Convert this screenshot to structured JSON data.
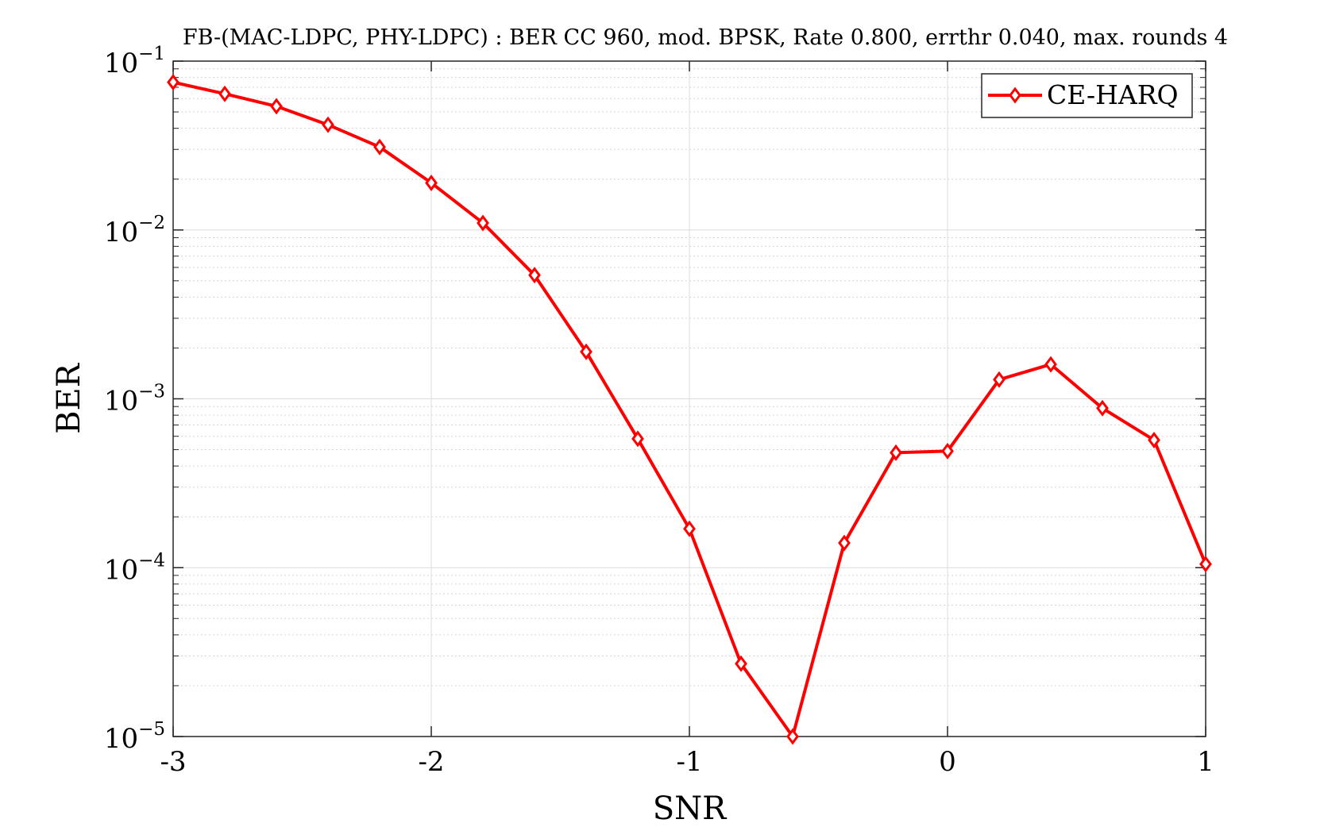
{
  "chart_data": {
    "type": "line",
    "title": "FB-(MAC-LDPC, PHY-LDPC) : BER CC 960, mod. BPSK, Rate 0.800, errthr 0.040, max. rounds 4",
    "xlabel": "SNR",
    "ylabel": "BER",
    "xlim": [
      -3,
      1
    ],
    "ylim": [
      1e-05,
      0.1
    ],
    "yscale": "log",
    "grid": true,
    "minor_grid": true,
    "legend_position": "top-right",
    "x_ticks": [
      {
        "value": -3,
        "label": "-3"
      },
      {
        "value": -2,
        "label": "-2"
      },
      {
        "value": -1,
        "label": "-1"
      },
      {
        "value": 0,
        "label": "0"
      },
      {
        "value": 1,
        "label": "1"
      }
    ],
    "y_ticks": [
      {
        "value": 0.1,
        "base": "10",
        "exp": "−1"
      },
      {
        "value": 0.01,
        "base": "10",
        "exp": "−2"
      },
      {
        "value": 0.001,
        "base": "10",
        "exp": "−3"
      },
      {
        "value": 0.0001,
        "base": "10",
        "exp": "−4"
      },
      {
        "value": 1e-05,
        "base": "10",
        "exp": "−5"
      }
    ],
    "series": [
      {
        "name": "CE-HARQ",
        "color": "#ff0000",
        "marker": "diamond",
        "x": [
          -3,
          -2.8,
          -2.6,
          -2.4,
          -2.2,
          -2,
          -1.8,
          -1.6,
          -1.4,
          -1.2,
          -1,
          -0.8,
          -0.6,
          -0.4,
          -0.2,
          0,
          0.2,
          0.4,
          0.6,
          0.8,
          1
        ],
        "y": [
          0.075,
          0.064,
          0.054,
          0.042,
          0.031,
          0.019,
          0.011,
          0.0054,
          0.0019,
          0.00058,
          0.00017,
          2.7e-05,
          1e-05,
          0.00014,
          0.00048,
          0.00049,
          0.0013,
          0.0016,
          0.00088,
          0.00057,
          0.000105
        ]
      }
    ]
  }
}
